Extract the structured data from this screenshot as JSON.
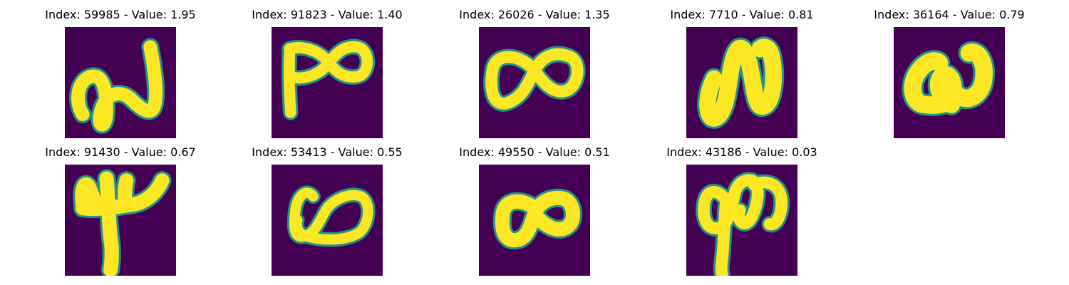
{
  "chart_data": {
    "type": "image-grid",
    "colormap": "viridis",
    "colors": {
      "background": "#440154",
      "foreground": "#fde725",
      "edge": "#21918c"
    },
    "grid": false,
    "panels": [
      {
        "title": "Index: 59985 - Value: 1.95",
        "index": 59985,
        "value": 1.95,
        "glyph": "squiggle-2"
      },
      {
        "title": "Index: 91823 - Value: 1.40",
        "index": 91823,
        "value": 1.4,
        "glyph": "p-infinity"
      },
      {
        "title": "Index: 26026 - Value: 1.35",
        "index": 26026,
        "value": 1.35,
        "glyph": "infinity"
      },
      {
        "title": "Index: 7710 - Value: 0.81",
        "index": 7710,
        "value": 0.81,
        "glyph": "tilde-n"
      },
      {
        "title": "Index: 36164 - Value: 0.79",
        "index": 36164,
        "value": 0.79,
        "glyph": "alpha-loop"
      },
      {
        "title": "Index: 91430 - Value: 0.67",
        "index": 91430,
        "value": 0.67,
        "glyph": "four"
      },
      {
        "title": "Index: 53413 - Value: 0.55",
        "index": 53413,
        "value": 0.55,
        "glyph": "infinity-open"
      },
      {
        "title": "Index: 49550 - Value: 0.51",
        "index": 49550,
        "value": 0.51,
        "glyph": "infinity-thick"
      },
      {
        "title": "Index: 43186 - Value: 0.03",
        "index": 43186,
        "value": 0.03,
        "glyph": "phi-loop"
      }
    ]
  }
}
